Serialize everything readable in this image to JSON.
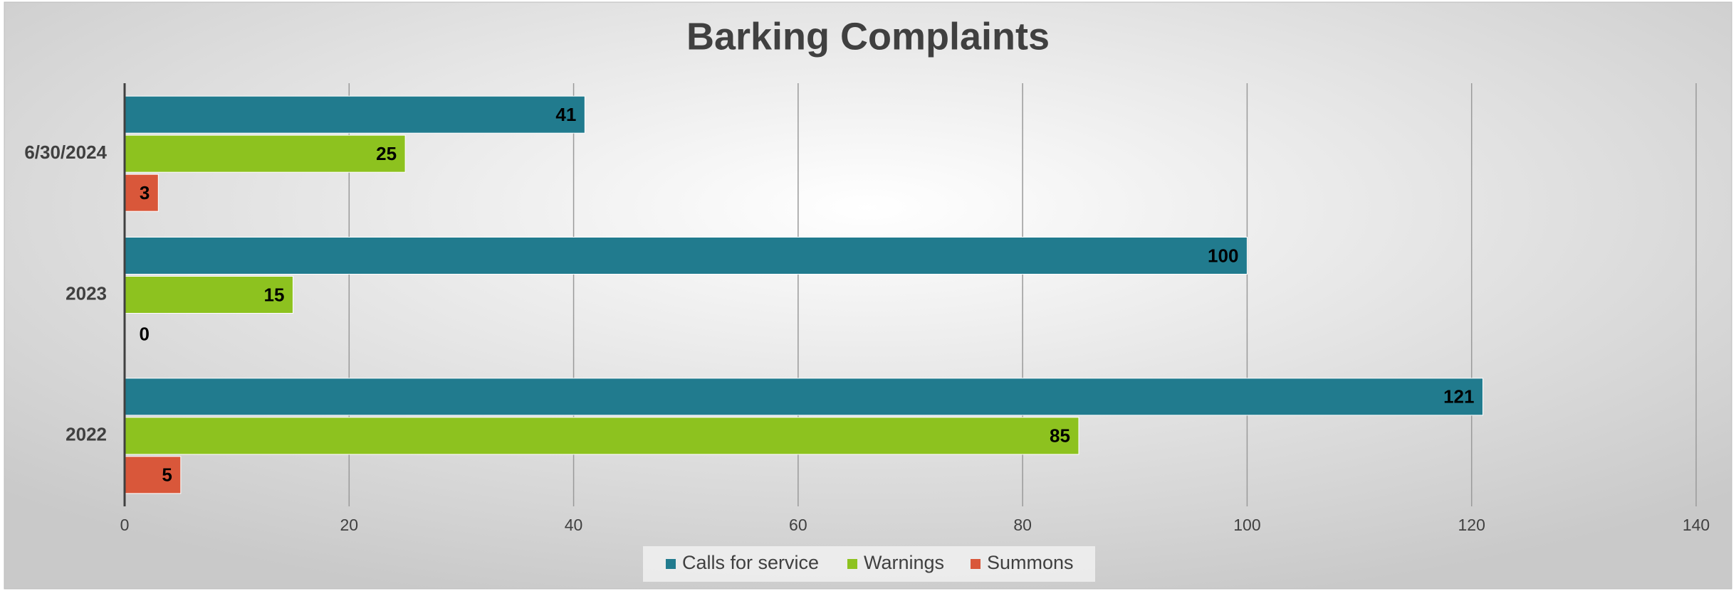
{
  "chart_data": {
    "type": "bar",
    "orientation": "horizontal",
    "title": "Barking Complaints",
    "categories": [
      "6/30/2024",
      "2023",
      "2022"
    ],
    "series": [
      {
        "name": "Calls for service",
        "color": "#217b8e",
        "values": [
          41,
          100,
          121
        ]
      },
      {
        "name": "Warnings",
        "color": "#8dc21f",
        "values": [
          25,
          15,
          85
        ]
      },
      {
        "name": "Summons",
        "color": "#d9573a",
        "values": [
          3,
          0,
          5
        ]
      }
    ],
    "xlim": [
      0,
      140
    ],
    "xticks": [
      0,
      20,
      40,
      60,
      80,
      100,
      120,
      140
    ],
    "grid": true,
    "legend": "bottom"
  }
}
